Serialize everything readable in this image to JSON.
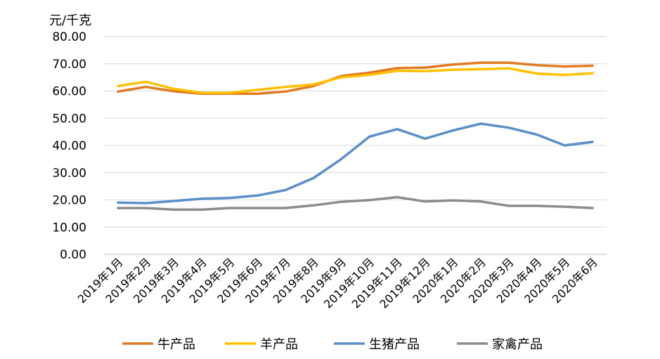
{
  "chart_data": {
    "type": "line",
    "unit_label": "元/千克",
    "categories": [
      "2019年1月",
      "2019年2月",
      "2019年3月",
      "2019年4月",
      "2019年5月",
      "2019年6月",
      "2019年7月",
      "2019年8月",
      "2019年9月",
      "2019年10月",
      "2019年11月",
      "2019年12月",
      "2020年1月",
      "2020年2月",
      "2020年3月",
      "2020年4月",
      "2020年5月",
      "2020年6月"
    ],
    "y_ticks": [
      "0.00",
      "10.00",
      "20.00",
      "30.00",
      "40.00",
      "50.00",
      "60.00",
      "70.00",
      "80.00"
    ],
    "ylim": [
      0,
      80
    ],
    "grid": true,
    "legend_position": "bottom",
    "series": [
      {
        "name": "牛产品",
        "color": "#E07B22",
        "values": [
          59.8,
          61.5,
          59.9,
          59.0,
          59.0,
          59.0,
          59.8,
          61.8,
          65.5,
          66.7,
          68.4,
          68.6,
          69.7,
          70.4,
          70.4,
          69.5,
          69.0,
          69.3
        ]
      },
      {
        "name": "羊产品",
        "color": "#FFC000",
        "values": [
          61.8,
          63.4,
          60.8,
          59.3,
          59.3,
          60.4,
          61.5,
          62.4,
          65.0,
          65.9,
          67.4,
          67.3,
          67.8,
          68.0,
          68.3,
          66.4,
          65.9,
          66.5
        ]
      },
      {
        "name": "生猪产品",
        "color": "#5B8FC9",
        "values": [
          19.0,
          18.8,
          19.6,
          20.4,
          20.7,
          21.6,
          23.6,
          28.0,
          35.0,
          43.2,
          46.0,
          42.5,
          45.5,
          48.0,
          46.5,
          44.0,
          40.0,
          41.3
        ]
      },
      {
        "name": "家禽产品",
        "color": "#8C8C8C",
        "values": [
          17.0,
          17.0,
          16.4,
          16.4,
          17.0,
          17.0,
          17.0,
          18.0,
          19.3,
          19.9,
          21.0,
          19.4,
          19.8,
          19.4,
          17.8,
          17.8,
          17.5,
          17.0
        ]
      }
    ]
  }
}
